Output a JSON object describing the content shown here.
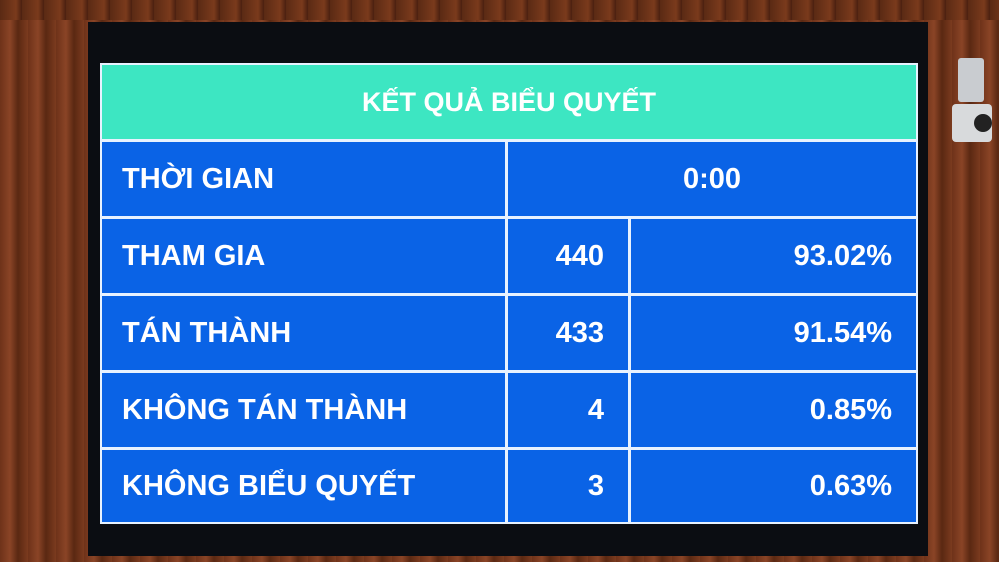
{
  "title": "KẾT QUẢ BIỂU QUYẾT",
  "colors": {
    "header": "#3de6c2",
    "cell": "#0a63e6",
    "text": "#ffffff"
  },
  "time": {
    "label": "THỜI GIAN",
    "value": "0:00"
  },
  "rows": [
    {
      "label": "THAM GIA",
      "count": "440",
      "percent": "93.02%"
    },
    {
      "label": "TÁN THÀNH",
      "count": "433",
      "percent": "91.54%"
    },
    {
      "label": "KHÔNG TÁN THÀNH",
      "count": "4",
      "percent": "0.85%"
    },
    {
      "label": "KHÔNG BIỂU QUYẾT",
      "count": "3",
      "percent": "0.63%"
    }
  ]
}
